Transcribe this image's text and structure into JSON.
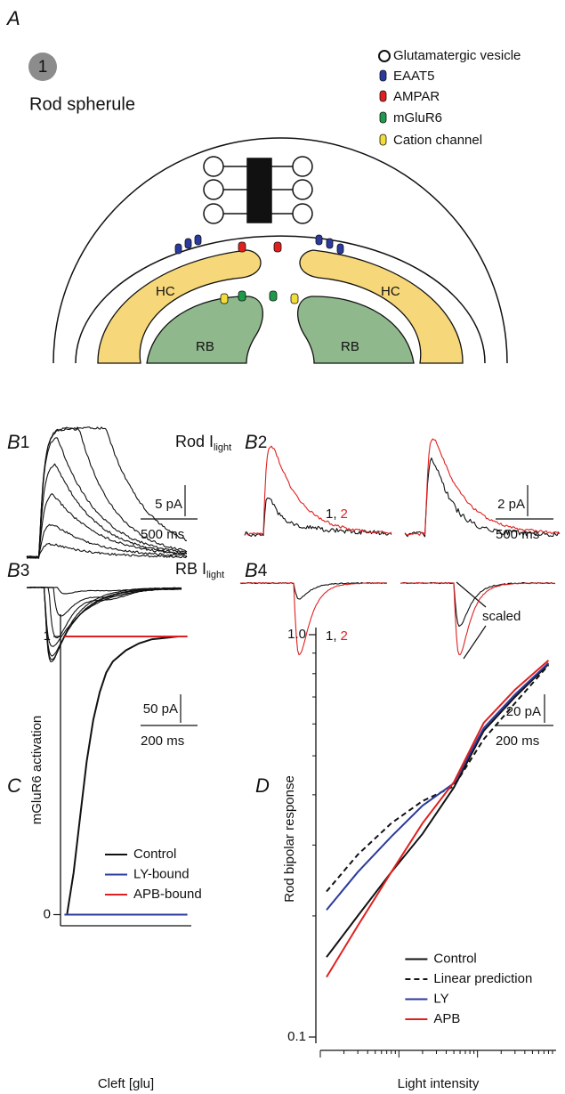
{
  "panel_a": {
    "label": "A",
    "step": "1",
    "title": "Rod spherule",
    "legend": [
      "Glutamatergic vesicle",
      "EAAT5",
      "AMPAR",
      "mGluR6",
      "Cation channel"
    ],
    "cells": {
      "hc": "HC",
      "rb": "RB"
    }
  },
  "panel_b": {
    "b1": {
      "letter": "B",
      "number": "1",
      "title": "Rod I",
      "subscript": "light",
      "scale_y": "5 pA",
      "scale_x": "500 ms"
    },
    "b2": {
      "letter": "B",
      "number": "2",
      "trace_labels": [
        "1,",
        "2"
      ],
      "scale_y": "2 pA",
      "scale_x": "500 ms"
    },
    "b3": {
      "letter": "B",
      "number": "3",
      "title": "RB I",
      "subscript": "light",
      "scale_y": "50 pA",
      "scale_x": "200 ms"
    },
    "b4": {
      "letter": "B",
      "number": "4",
      "trace_labels": [
        "1,",
        "2"
      ],
      "annotation": "scaled",
      "scale_y": "20 pA",
      "scale_x": "200 ms"
    }
  },
  "chart_data": [
    {
      "type": "line",
      "panel_label": "C",
      "xlabel": "Cleft [glu]",
      "ylabel": "mGluR6 activation",
      "xlim": [
        0,
        10
      ],
      "ylim": [
        -0.04,
        1.08
      ],
      "yticks": [
        0,
        1
      ],
      "legend": "lower right",
      "series": [
        {
          "name": "Control",
          "color": "#111111",
          "x": [
            0.5,
            1,
            1.5,
            2,
            2.5,
            3,
            3.5,
            4,
            5,
            6,
            7,
            8,
            9,
            9.7
          ],
          "values": [
            0,
            0.15,
            0.35,
            0.55,
            0.7,
            0.8,
            0.87,
            0.91,
            0.95,
            0.975,
            0.99,
            0.995,
            1,
            1
          ]
        },
        {
          "name": "LY-bound",
          "color": "#2b3a9c",
          "x": [
            0.3,
            9.7
          ],
          "values": [
            0,
            0
          ]
        },
        {
          "name": "APB-bound",
          "color": "#e02020",
          "x": [
            0.3,
            9.7
          ],
          "values": [
            1,
            1
          ]
        }
      ]
    },
    {
      "type": "line",
      "panel_label": "D",
      "xlabel": "Light intensity",
      "ylabel": "Rod bipolar response",
      "xlog": true,
      "ylog": true,
      "xlim": [
        1,
        1000
      ],
      "ylim": [
        0.1,
        1.0
      ],
      "yticks": [
        0.1,
        {
          "value": 1,
          "label": "1.0"
        }
      ],
      "legend": "lower right",
      "x": [
        1.2,
        3,
        8,
        20,
        50,
        120,
        300,
        800
      ],
      "series": [
        {
          "name": "Control",
          "color": "#111111",
          "values": [
            0.158,
            0.2,
            0.257,
            0.32,
            0.417,
            0.577,
            0.7,
            0.845
          ]
        },
        {
          "name": "Linear prediction",
          "color": "#111111",
          "dashed": true,
          "values": [
            0.23,
            0.284,
            0.34,
            0.386,
            0.42,
            0.55,
            0.676,
            0.84
          ]
        },
        {
          "name": "LY",
          "color": "#2b3a9c",
          "values": [
            0.207,
            0.257,
            0.315,
            0.376,
            0.427,
            0.586,
            0.71,
            0.85
          ]
        },
        {
          "name": "APB",
          "color": "#e02020",
          "values": [
            0.141,
            0.189,
            0.257,
            0.34,
            0.43,
            0.604,
            0.73,
            0.863
          ]
        }
      ]
    }
  ]
}
